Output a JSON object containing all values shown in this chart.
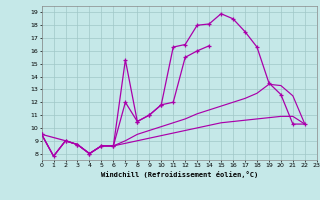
{
  "xlabel": "Windchill (Refroidissement éolien,°C)",
  "xlim": [
    0,
    23
  ],
  "ylim": [
    7.5,
    19.5
  ],
  "xticks": [
    0,
    1,
    2,
    3,
    4,
    5,
    6,
    7,
    8,
    9,
    10,
    11,
    12,
    13,
    14,
    15,
    16,
    17,
    18,
    19,
    20,
    21,
    22,
    23
  ],
  "yticks": [
    8,
    9,
    10,
    11,
    12,
    13,
    14,
    15,
    16,
    17,
    18,
    19
  ],
  "bg_color": "#c5e8e8",
  "line_color": "#aa00aa",
  "grid_color": "#a0c8c8",
  "c1_x": [
    0,
    1,
    2,
    3,
    4,
    5,
    6,
    7,
    8,
    9,
    10,
    11,
    12,
    13,
    14,
    15,
    16,
    17,
    18,
    19,
    20,
    21,
    22
  ],
  "c1_y": [
    9.5,
    7.8,
    9.0,
    8.7,
    8.0,
    8.6,
    8.6,
    12.0,
    10.5,
    11.0,
    11.8,
    16.3,
    16.5,
    18.0,
    18.1,
    18.9,
    18.5,
    17.5,
    16.3,
    13.5,
    12.6,
    10.3,
    10.3
  ],
  "c2_x": [
    0,
    2,
    3,
    4,
    5,
    6,
    7,
    8,
    9,
    10,
    11,
    12,
    13,
    14
  ],
  "c2_y": [
    9.5,
    9.0,
    8.7,
    8.0,
    8.6,
    8.6,
    15.3,
    10.5,
    11.0,
    11.8,
    12.0,
    15.5,
    16.0,
    16.4
  ],
  "c3_x": [
    0,
    1,
    2,
    3,
    4,
    5,
    6,
    7,
    8,
    9,
    10,
    11,
    12,
    13,
    14,
    15,
    16,
    17,
    18,
    19,
    20,
    21,
    22
  ],
  "c3_y": [
    9.5,
    7.8,
    9.0,
    8.7,
    8.0,
    8.6,
    8.6,
    9.0,
    9.5,
    9.8,
    10.1,
    10.4,
    10.7,
    11.1,
    11.4,
    11.7,
    12.0,
    12.3,
    12.7,
    13.4,
    13.3,
    12.5,
    10.3
  ],
  "c4_x": [
    0,
    1,
    2,
    3,
    4,
    5,
    6,
    7,
    8,
    9,
    10,
    11,
    12,
    13,
    14,
    15,
    16,
    17,
    18,
    19,
    20,
    21,
    22
  ],
  "c4_y": [
    9.5,
    7.8,
    9.0,
    8.7,
    8.0,
    8.6,
    8.6,
    8.8,
    9.0,
    9.2,
    9.4,
    9.6,
    9.8,
    10.0,
    10.2,
    10.4,
    10.5,
    10.6,
    10.7,
    10.8,
    10.9,
    10.9,
    10.3
  ]
}
